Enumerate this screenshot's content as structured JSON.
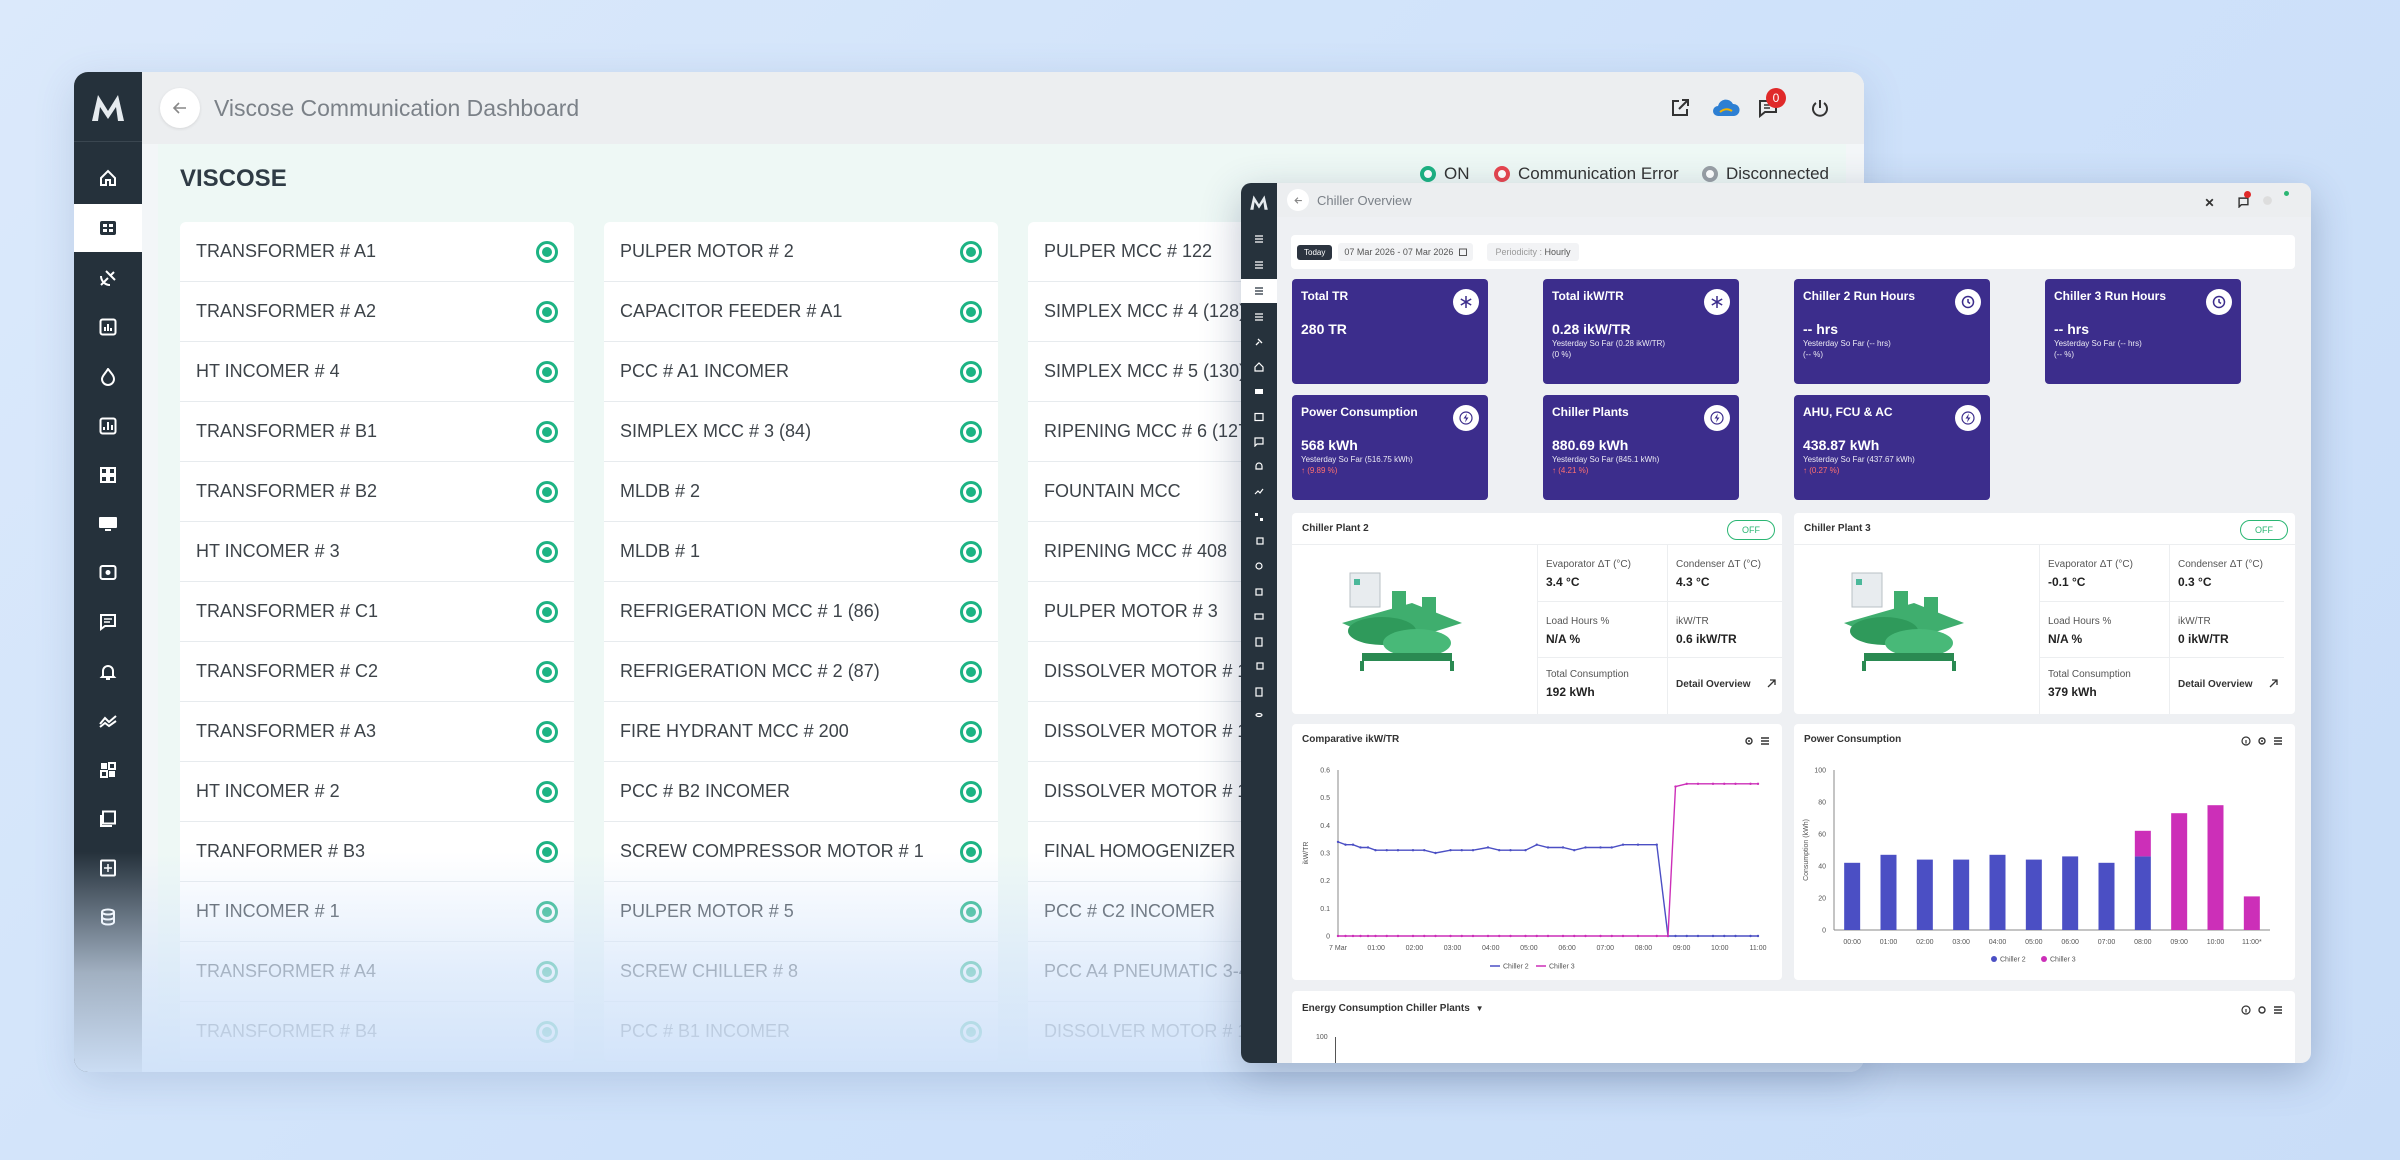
{
  "back_window": {
    "title": "Viscose Communication Dashboard",
    "notification_count": "0",
    "section_title": "VISCOSE",
    "legend": [
      {
        "label": "ON",
        "color": "#1db383"
      },
      {
        "label": "Communication Error",
        "color": "#e8454f"
      },
      {
        "label": "Disconnected",
        "color": "#9aa0a6"
      }
    ],
    "columns": [
      [
        "TRANSFORMER # A1",
        "TRANSFORMER # A2",
        "HT INCOMER # 4",
        "TRANSFORMER # B1",
        "TRANSFORMER # B2",
        "HT INCOMER # 3",
        "TRANSFORMER # C1",
        "TRANSFORMER # C2",
        "TRANSFORMER # A3",
        "HT INCOMER # 2",
        "TRANFORMER # B3",
        "HT INCOMER # 1",
        "TRANSFORMER # A4",
        "TRANSFORMER # B4"
      ],
      [
        "PULPER MOTOR # 2",
        "CAPACITOR FEEDER # A1",
        "PCC # A1 INCOMER",
        "SIMPLEX MCC # 3 (84)",
        "MLDB # 2",
        "MLDB # 1",
        "REFRIGERATION MCC # 1 (86)",
        "REFRIGERATION MCC # 2 (87)",
        "FIRE HYDRANT MCC # 200",
        "PCC # B2 INCOMER",
        "SCREW COMPRESSOR MOTOR # 1",
        "PULPER MOTOR # 5",
        "SCREW CHILLER # 8",
        "PCC # B1 INCOMER"
      ],
      [
        "PULPER MCC # 122",
        "SIMPLEX MCC # 4 (128)",
        "SIMPLEX MCC # 5 (130)",
        "RIPENING MCC # 6 (127)",
        "FOUNTAIN MCC",
        "RIPENING MCC # 408",
        "PULPER MOTOR # 3",
        "DISSOLVER MOTOR # 10",
        "DISSOLVER MOTOR # 11",
        "DISSOLVER MOTOR # 12",
        "FINAL HOMOGENIZER M",
        "PCC # C2 INCOMER",
        "PCC A4 PNEUMATIC 3-4",
        "DISSOLVER MOTOR # 17"
      ]
    ]
  },
  "front_window": {
    "title": "Chiller Overview",
    "filter": {
      "today": "Today",
      "date_range": "07 Mar 2026 - 07 Mar 2026",
      "periodicity_label": "Periodicity :",
      "periodicity_value": "Hourly"
    },
    "tiles": [
      {
        "title": "Total TR",
        "value": "280 TR",
        "sub": "",
        "sub2": "",
        "delta": "",
        "icon": "snowflake-icon"
      },
      {
        "title": "Total ikW/TR",
        "value": "0.28 ikW/TR",
        "sub": "Yesterday So Far (0.28 ikW/TR)",
        "sub2": "(0 %)",
        "delta": "",
        "icon": "snowflake-icon"
      },
      {
        "title": "Chiller 2 Run Hours",
        "value": "-- hrs",
        "sub": "Yesterday So Far (-- hrs)",
        "sub2": "(-- %)",
        "delta": "",
        "icon": "clock-icon"
      },
      {
        "title": "Chiller 3 Run Hours",
        "value": "-- hrs",
        "sub": "Yesterday So Far (-- hrs)",
        "sub2": "(-- %)",
        "delta": "",
        "icon": "clock-icon"
      },
      {
        "title": "Power Consumption",
        "value": "568 kWh",
        "sub": "Yesterday So Far (516.75 kWh)",
        "sub2": "",
        "delta": "↑ (9.89 %)",
        "icon": "bolt-icon"
      },
      {
        "title": "Chiller Plants",
        "value": "880.69 kWh",
        "sub": "Yesterday So Far (845.1 kWh)",
        "sub2": "",
        "delta": "↑ (4.21 %)",
        "icon": "bolt-icon"
      },
      {
        "title": "AHU, FCU & AC",
        "value": "438.87 kWh",
        "sub": "Yesterday So Far (437.67 kWh)",
        "sub2": "",
        "delta": "↑ (0.27 %)",
        "icon": "bolt-icon"
      }
    ],
    "plants": [
      {
        "name": "Chiller Plant 2",
        "status": "OFF",
        "evap_label": "Evaporator ΔT (°C)",
        "evap": "3.4 °C",
        "cond_label": "Condenser ΔT (°C)",
        "cond": "4.3 °C",
        "load_label": "Load Hours %",
        "load": "N/A %",
        "ikw_label": "ikW/TR",
        "ikw": "0.6 ikW/TR",
        "total_label": "Total Consumption",
        "total": "192 kWh",
        "detail": "Detail Overview"
      },
      {
        "name": "Chiller Plant 3",
        "status": "OFF",
        "evap_label": "Evaporator ΔT (°C)",
        "evap": "-0.1 °C",
        "cond_label": "Condenser ΔT (°C)",
        "cond": "0.3 °C",
        "load_label": "Load Hours %",
        "load": "N/A %",
        "ikw_label": "ikW/TR",
        "ikw": "0 ikW/TR",
        "total_label": "Total Consumption",
        "total": "379 kWh",
        "detail": "Detail Overview"
      }
    ],
    "energy_title": "Energy Consumption Chiller Plants",
    "energy_tick": "100"
  },
  "chart_data": [
    {
      "type": "line",
      "title": "Comparative ikW/TR",
      "ylabel": "ikW/TR",
      "ylim": [
        0,
        0.6
      ],
      "yticks": [
        "0",
        "0.1",
        "0.2",
        "0.3",
        "0.4",
        "0.5",
        "0.6"
      ],
      "xticks": [
        "7 Mar",
        "01:00",
        "02:00",
        "03:00",
        "04:00",
        "05:00",
        "06:00",
        "07:00",
        "08:00",
        "09:00",
        "10:00",
        "11:00"
      ],
      "x": [
        0,
        0.2,
        0.4,
        0.6,
        0.8,
        1,
        1.3,
        1.6,
        2,
        2.3,
        2.6,
        3,
        3.3,
        3.6,
        4,
        4.3,
        4.6,
        5,
        5.3,
        5.6,
        6,
        6.3,
        6.6,
        7,
        7.3,
        7.6,
        8,
        8.5,
        8.8,
        9,
        9.3,
        9.6,
        10,
        10.3,
        10.6,
        11,
        11.2
      ],
      "series": [
        {
          "name": "Chiller 2",
          "color": "#4b4fc4",
          "values": [
            0.34,
            0.33,
            0.33,
            0.32,
            0.32,
            0.31,
            0.31,
            0.31,
            0.31,
            0.31,
            0.3,
            0.31,
            0.31,
            0.31,
            0.32,
            0.31,
            0.31,
            0.31,
            0.33,
            0.32,
            0.32,
            0.31,
            0.32,
            0.32,
            0.32,
            0.33,
            0.33,
            0.33,
            0,
            0,
            0,
            0,
            0,
            0,
            0,
            0,
            0
          ]
        },
        {
          "name": "Chiller 3",
          "color": "#cc2fb8",
          "values": [
            0,
            0,
            0,
            0,
            0,
            0,
            0,
            0,
            0,
            0,
            0,
            0,
            0,
            0,
            0,
            0,
            0,
            0,
            0,
            0,
            0,
            0,
            0,
            0,
            0,
            0,
            0,
            0,
            0,
            0.54,
            0.55,
            0.55,
            0.55,
            0.55,
            0.55,
            0.55,
            0.55
          ]
        }
      ]
    },
    {
      "type": "bar",
      "title": "Power Consumption",
      "ylabel": "Consumption (kWh)",
      "ylim": [
        0,
        100
      ],
      "yticks": [
        "0",
        "20",
        "40",
        "60",
        "80",
        "100"
      ],
      "categories": [
        "00:00",
        "01:00",
        "02:00",
        "03:00",
        "04:00",
        "05:00",
        "06:00",
        "07:00",
        "08:00",
        "09:00",
        "10:00",
        "11:00*"
      ],
      "series": [
        {
          "name": "Chiller 2",
          "color": "#4b4fc4",
          "values": [
            42,
            47,
            44,
            44,
            47,
            44,
            46,
            42,
            46,
            0,
            0,
            0
          ]
        },
        {
          "name": "Chiller 3",
          "color": "#cc2fb8",
          "values": [
            0,
            0,
            0,
            0,
            0,
            0,
            0,
            0,
            16,
            73,
            78,
            21
          ]
        }
      ]
    }
  ]
}
